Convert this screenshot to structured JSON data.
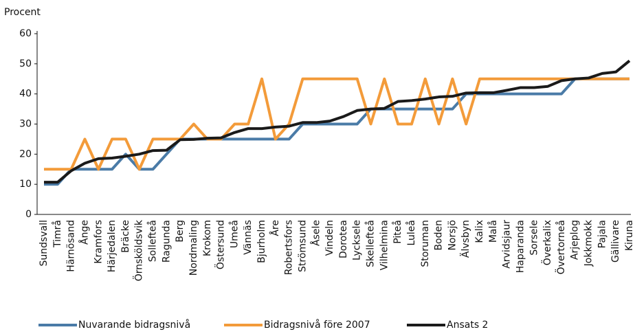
{
  "chart_data": {
    "type": "line",
    "ylabel": "Procent",
    "categories": [
      "Sundsvall",
      "Timrå",
      "Härnösand",
      "Ånge",
      "Kramfors",
      "Härjedalen",
      "Bräcke",
      "Örnsköldsvik",
      "Sollefteå",
      "Ragunda",
      "Berg",
      "Nordmaling",
      "Krokom",
      "Östersund",
      "Umeå",
      "Vännäs",
      "Bjurholm",
      "Åre",
      "Robertsfors",
      "Strömsund",
      "Åsele",
      "Vindeln",
      "Dorotea",
      "Lycksele",
      "Skellefteå",
      "Vilhelmina",
      "Piteå",
      "Luleå",
      "Storuman",
      "Boden",
      "Norsjö",
      "Älvsbyn",
      "Kalix",
      "Malå",
      "Arvidsjaur",
      "Haparanda",
      "Sorsele",
      "Överkalix",
      "Övertorneå",
      "Arjeplog",
      "Jokkmokk",
      "Pajala",
      "Gällivare",
      "Kiruna"
    ],
    "series": [
      {
        "name": "Nuvarande bidragsnivå",
        "color": "#4a7ba7",
        "values": [
          10,
          10,
          15,
          15,
          15,
          15,
          20,
          15,
          15,
          20,
          25,
          25,
          25,
          25,
          25,
          25,
          25,
          25,
          25,
          30,
          30,
          30,
          30,
          30,
          35,
          35,
          35,
          35,
          35,
          35,
          35,
          40,
          40,
          40,
          40,
          40,
          40,
          40,
          40,
          45,
          45,
          45,
          45,
          45
        ]
      },
      {
        "name": "Bidragsnivå före 2007",
        "color": "#f39b3a",
        "values": [
          15,
          15,
          15,
          25,
          15,
          25,
          25,
          15,
          25,
          25,
          25,
          30,
          25,
          25,
          30,
          30,
          45,
          25,
          30,
          45,
          45,
          45,
          45,
          45,
          30,
          45,
          30,
          30,
          45,
          30,
          45,
          30,
          45,
          45,
          45,
          45,
          45,
          45,
          45,
          45,
          45,
          45,
          45,
          45
        ]
      },
      {
        "name": "Ansats 2",
        "color": "#1a1a1a",
        "values": [
          10.7,
          10.7,
          14.5,
          17,
          18.5,
          18.7,
          19.3,
          20,
          21.2,
          21.3,
          24.8,
          24.9,
          25.3,
          25.4,
          27.2,
          28.5,
          28.5,
          29,
          29.3,
          30.5,
          30.5,
          31,
          32.5,
          34.5,
          35,
          35.2,
          37.5,
          37.8,
          38.3,
          39,
          39.2,
          40.3,
          40.4,
          40.4,
          41.2,
          42.1,
          42.1,
          42.5,
          44.4,
          45,
          45.3,
          46.8,
          47.3,
          51
        ]
      }
    ],
    "ylim": [
      0,
      60
    ],
    "yticks": [
      0,
      10,
      20,
      30,
      40,
      50,
      60
    ],
    "legend": "bottom"
  }
}
